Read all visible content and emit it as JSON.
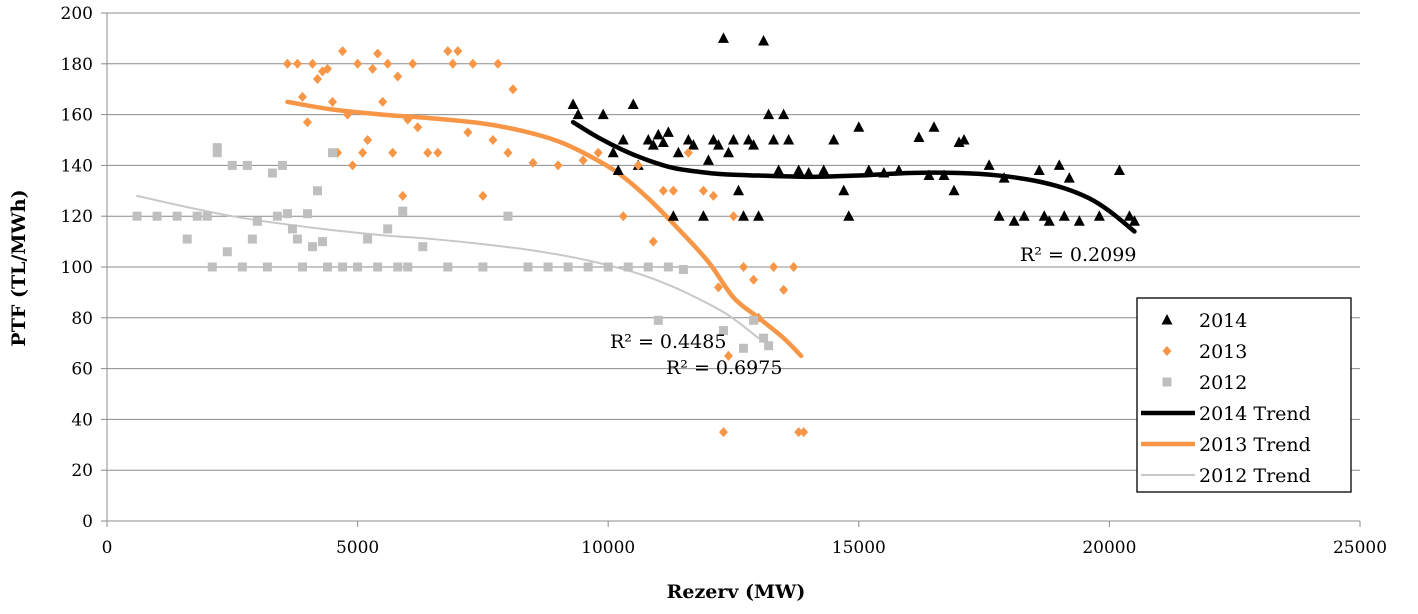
{
  "chart_data": {
    "type": "scatter",
    "xlabel": "Rezerv (MW)",
    "ylabel": "PTF (TL/MWh)",
    "xlim": [
      0,
      25000
    ],
    "ylim": [
      0,
      200
    ],
    "x_ticks": [
      0,
      5000,
      10000,
      15000,
      20000,
      25000
    ],
    "y_ticks": [
      0,
      20,
      40,
      60,
      80,
      100,
      120,
      140,
      160,
      180,
      200
    ],
    "grid": "horizontal",
    "legend_position": "right",
    "series": [
      {
        "name": "2014",
        "marker": "triangle",
        "color": "#000000",
        "points": [
          [
            9300,
            164
          ],
          [
            9400,
            160
          ],
          [
            9900,
            160
          ],
          [
            10100,
            145
          ],
          [
            10200,
            138
          ],
          [
            10300,
            150
          ],
          [
            10500,
            164
          ],
          [
            10600,
            140
          ],
          [
            10800,
            150
          ],
          [
            10900,
            148
          ],
          [
            11000,
            152
          ],
          [
            11100,
            149
          ],
          [
            11200,
            153
          ],
          [
            11300,
            120
          ],
          [
            11400,
            145
          ],
          [
            11600,
            150
          ],
          [
            11700,
            148
          ],
          [
            11900,
            120
          ],
          [
            12000,
            142
          ],
          [
            12100,
            150
          ],
          [
            12200,
            148
          ],
          [
            12300,
            190
          ],
          [
            12400,
            145
          ],
          [
            12500,
            150
          ],
          [
            12600,
            130
          ],
          [
            12700,
            120
          ],
          [
            12800,
            150
          ],
          [
            12900,
            148
          ],
          [
            13000,
            120
          ],
          [
            13100,
            189
          ],
          [
            13200,
            160
          ],
          [
            13300,
            150
          ],
          [
            13400,
            138
          ],
          [
            13500,
            160
          ],
          [
            13600,
            150
          ],
          [
            13800,
            138
          ],
          [
            14000,
            137
          ],
          [
            14300,
            138
          ],
          [
            14500,
            150
          ],
          [
            14700,
            130
          ],
          [
            14800,
            120
          ],
          [
            15000,
            155
          ],
          [
            15200,
            138
          ],
          [
            15500,
            137
          ],
          [
            15800,
            138
          ],
          [
            16200,
            151
          ],
          [
            16400,
            136
          ],
          [
            16500,
            155
          ],
          [
            16700,
            136
          ],
          [
            16900,
            130
          ],
          [
            17000,
            149
          ],
          [
            17100,
            150
          ],
          [
            17600,
            140
          ],
          [
            17800,
            120
          ],
          [
            17900,
            135
          ],
          [
            18100,
            118
          ],
          [
            18300,
            120
          ],
          [
            18600,
            138
          ],
          [
            18700,
            120
          ],
          [
            18800,
            118
          ],
          [
            19000,
            140
          ],
          [
            19100,
            120
          ],
          [
            19200,
            135
          ],
          [
            19400,
            118
          ],
          [
            19800,
            120
          ],
          [
            20200,
            138
          ],
          [
            20400,
            120
          ],
          [
            20500,
            118
          ]
        ]
      },
      {
        "name": "2013",
        "marker": "diamond",
        "color": "#f79646",
        "points": [
          [
            3600,
            180
          ],
          [
            3800,
            180
          ],
          [
            3900,
            167
          ],
          [
            4000,
            157
          ],
          [
            4100,
            180
          ],
          [
            4200,
            174
          ],
          [
            4300,
            177
          ],
          [
            4400,
            178
          ],
          [
            4500,
            165
          ],
          [
            4600,
            145
          ],
          [
            4700,
            185
          ],
          [
            4800,
            160
          ],
          [
            4900,
            140
          ],
          [
            5000,
            180
          ],
          [
            5100,
            145
          ],
          [
            5200,
            150
          ],
          [
            5300,
            178
          ],
          [
            5400,
            184
          ],
          [
            5500,
            165
          ],
          [
            5600,
            180
          ],
          [
            5700,
            145
          ],
          [
            5800,
            175
          ],
          [
            5900,
            128
          ],
          [
            6000,
            158
          ],
          [
            6100,
            180
          ],
          [
            6200,
            155
          ],
          [
            6400,
            145
          ],
          [
            6600,
            145
          ],
          [
            6800,
            185
          ],
          [
            6900,
            180
          ],
          [
            7000,
            185
          ],
          [
            7200,
            153
          ],
          [
            7300,
            180
          ],
          [
            7500,
            128
          ],
          [
            7700,
            150
          ],
          [
            7800,
            180
          ],
          [
            8000,
            145
          ],
          [
            8100,
            170
          ],
          [
            8500,
            141
          ],
          [
            9000,
            140
          ],
          [
            9500,
            142
          ],
          [
            9800,
            145
          ],
          [
            10300,
            120
          ],
          [
            10600,
            140
          ],
          [
            10900,
            110
          ],
          [
            11100,
            130
          ],
          [
            11300,
            130
          ],
          [
            11600,
            145
          ],
          [
            11900,
            130
          ],
          [
            12100,
            128
          ],
          [
            12200,
            92
          ],
          [
            12300,
            35
          ],
          [
            12400,
            65
          ],
          [
            12500,
            120
          ],
          [
            12700,
            100
          ],
          [
            12900,
            95
          ],
          [
            13000,
            80
          ],
          [
            13300,
            100
          ],
          [
            13500,
            91
          ],
          [
            13700,
            100
          ],
          [
            13800,
            35
          ],
          [
            13900,
            35
          ]
        ]
      },
      {
        "name": "2012",
        "marker": "square",
        "color": "#bfbfbf",
        "points": [
          [
            600,
            120
          ],
          [
            1000,
            120
          ],
          [
            1400,
            120
          ],
          [
            1600,
            111
          ],
          [
            1800,
            120
          ],
          [
            2000,
            120
          ],
          [
            2100,
            100
          ],
          [
            2200,
            147
          ],
          [
            2200,
            145
          ],
          [
            2400,
            106
          ],
          [
            2500,
            140
          ],
          [
            2700,
            100
          ],
          [
            2800,
            140
          ],
          [
            2900,
            111
          ],
          [
            3000,
            118
          ],
          [
            3200,
            100
          ],
          [
            3300,
            137
          ],
          [
            3400,
            120
          ],
          [
            3500,
            140
          ],
          [
            3600,
            121
          ],
          [
            3700,
            115
          ],
          [
            3800,
            111
          ],
          [
            3900,
            100
          ],
          [
            4000,
            121
          ],
          [
            4100,
            108
          ],
          [
            4200,
            130
          ],
          [
            4300,
            110
          ],
          [
            4400,
            100
          ],
          [
            4500,
            145
          ],
          [
            4700,
            100
          ],
          [
            5000,
            100
          ],
          [
            5200,
            111
          ],
          [
            5400,
            100
          ],
          [
            5600,
            115
          ],
          [
            5800,
            100
          ],
          [
            5900,
            122
          ],
          [
            6000,
            100
          ],
          [
            6300,
            108
          ],
          [
            6800,
            100
          ],
          [
            7500,
            100
          ],
          [
            8000,
            120
          ],
          [
            8400,
            100
          ],
          [
            8800,
            100
          ],
          [
            9200,
            100
          ],
          [
            9600,
            100
          ],
          [
            10000,
            100
          ],
          [
            10400,
            100
          ],
          [
            10800,
            100
          ],
          [
            11200,
            100
          ],
          [
            11500,
            99
          ],
          [
            11000,
            79
          ],
          [
            12300,
            75
          ],
          [
            12700,
            68
          ],
          [
            12900,
            79
          ],
          [
            13100,
            72
          ],
          [
            13200,
            69
          ]
        ]
      }
    ],
    "trends": [
      {
        "name": "2014 Trend",
        "color": "#000000",
        "width": 4.5,
        "points": [
          [
            9300,
            157
          ],
          [
            9800,
            151
          ],
          [
            10300,
            146
          ],
          [
            10800,
            142
          ],
          [
            11300,
            139
          ],
          [
            11800,
            137.5
          ],
          [
            12300,
            136.5
          ],
          [
            13000,
            136
          ],
          [
            14000,
            135.5
          ],
          [
            15000,
            136
          ],
          [
            16000,
            137
          ],
          [
            17000,
            137
          ],
          [
            17800,
            136
          ],
          [
            18500,
            134
          ],
          [
            19100,
            131
          ],
          [
            19600,
            127
          ],
          [
            20000,
            122
          ],
          [
            20500,
            114
          ]
        ],
        "r2": "R² = 0.2099"
      },
      {
        "name": "2013 Trend",
        "color": "#f79646",
        "width": 4.5,
        "points": [
          [
            3600,
            165
          ],
          [
            4500,
            162
          ],
          [
            5500,
            160
          ],
          [
            6500,
            158.5
          ],
          [
            7500,
            156.5
          ],
          [
            8300,
            153.5
          ],
          [
            9000,
            149.5
          ],
          [
            9600,
            144
          ],
          [
            10200,
            137
          ],
          [
            10800,
            127
          ],
          [
            11400,
            115
          ],
          [
            12000,
            102
          ],
          [
            12500,
            88
          ],
          [
            13000,
            80
          ],
          [
            13500,
            72
          ],
          [
            13850,
            65
          ]
        ],
        "r2": "R² = 0.6975"
      },
      {
        "name": "2012 Trend",
        "color": "#c8c8c8",
        "width": 2,
        "points": [
          [
            600,
            128
          ],
          [
            1500,
            124
          ],
          [
            2500,
            120
          ],
          [
            3500,
            117
          ],
          [
            4500,
            114.5
          ],
          [
            5500,
            112.5
          ],
          [
            6500,
            111
          ],
          [
            7500,
            109
          ],
          [
            8500,
            106.5
          ],
          [
            9500,
            103
          ],
          [
            10500,
            98
          ],
          [
            11200,
            93
          ],
          [
            11800,
            87.5
          ],
          [
            12400,
            81
          ],
          [
            13000,
            72
          ]
        ],
        "r2": "R² = 0.4485"
      }
    ],
    "legend": [
      "2014",
      "2013",
      "2012",
      "2014 Trend",
      "2013 Trend",
      "2012 Trend"
    ]
  }
}
